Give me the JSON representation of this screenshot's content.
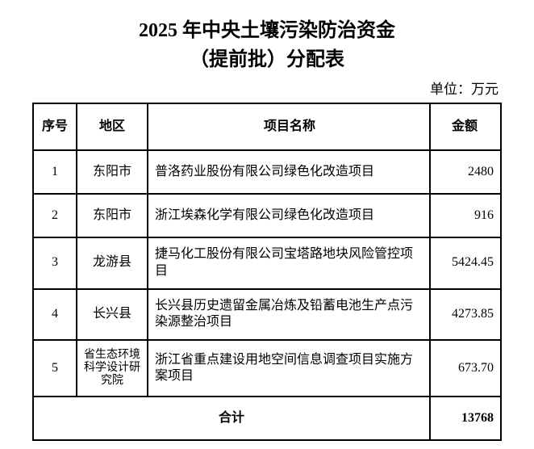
{
  "title_line1": "2025 年中央土壤污染防治资金",
  "title_line2": "（提前批）分配表",
  "unit_label": "单位：万元",
  "table": {
    "columns": [
      "序号",
      "地区",
      "项目名称",
      "金额"
    ],
    "rows": [
      {
        "seq": "1",
        "region": "东阳市",
        "project": "普洛药业股份有限公司绿色化改造项目",
        "amount": "2480"
      },
      {
        "seq": "2",
        "region": "东阳市",
        "project": "浙江埃森化学有限公司绿色化改造项目",
        "amount": "916"
      },
      {
        "seq": "3",
        "region": "龙游县",
        "project": "捷马化工股份有限公司宝塔路地块风险管控项目",
        "amount": "5424.45"
      },
      {
        "seq": "4",
        "region": "长兴县",
        "project": "长兴县历史遗留金属冶炼及铅蓄电池生产点污染源整治项目",
        "amount": "4273.85"
      },
      {
        "seq": "5",
        "region": "省生态环境科学设计研究院",
        "project": "浙江省重点建设用地空间信息调查项目实施方案项目",
        "amount": "673.70"
      }
    ],
    "total_label": "合计",
    "total_amount": "13768"
  }
}
